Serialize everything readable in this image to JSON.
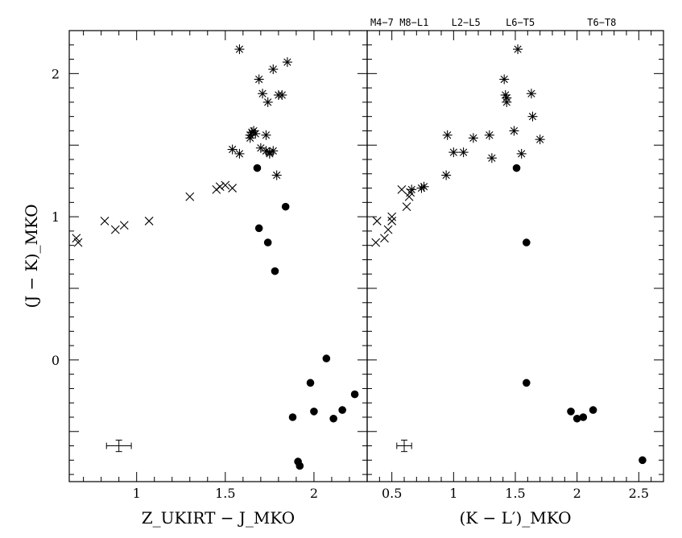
{
  "chart_data": [
    {
      "type": "scatter",
      "xlabel": "Z_UKIRT − J_MKO",
      "ylabel": "(J − K)_MKO",
      "xlim": [
        0.62,
        2.3
      ],
      "ylim": [
        -0.85,
        2.3
      ],
      "x_ticks": [
        "1",
        "1.5",
        "2"
      ],
      "y_ticks": [
        "0",
        "1",
        "2"
      ],
      "grid": false,
      "series": [
        {
          "marker": "cross",
          "x": [
            0.66,
            0.67,
            0.82,
            0.88,
            0.93,
            1.07,
            1.3,
            1.45,
            1.47,
            1.5,
            1.54
          ],
          "y": [
            0.85,
            0.82,
            0.97,
            0.91,
            0.94,
            0.97,
            1.14,
            1.19,
            1.21,
            1.22,
            1.2
          ]
        },
        {
          "marker": "asterisk",
          "x": [
            1.58,
            1.54,
            1.58,
            1.64,
            1.64,
            1.65,
            1.65,
            1.66,
            1.67,
            1.69,
            1.7,
            1.71,
            1.73,
            1.73,
            1.74,
            1.75,
            1.75,
            1.77,
            1.77,
            1.79,
            1.8,
            1.85,
            1.82
          ],
          "y": [
            2.17,
            1.47,
            1.44,
            1.55,
            1.57,
            1.59,
            1.59,
            1.6,
            1.58,
            1.96,
            1.48,
            1.86,
            1.57,
            1.46,
            1.8,
            1.44,
            1.45,
            1.46,
            2.03,
            1.29,
            1.85,
            2.08,
            1.85
          ]
        },
        {
          "marker": "dot",
          "x": [
            1.68,
            1.69,
            1.74,
            1.78,
            1.84,
            1.88,
            1.91,
            1.92,
            1.98,
            2.0,
            2.07,
            2.11,
            2.16,
            2.23
          ],
          "y": [
            1.34,
            0.92,
            0.82,
            0.62,
            1.07,
            -0.4,
            -0.71,
            -0.74,
            -0.16,
            -0.36,
            0.01,
            -0.41,
            -0.35,
            -0.24
          ]
        }
      ],
      "error_bar": {
        "x": 0.9,
        "y": -0.6,
        "dx": 0.07,
        "dy": 0.04
      }
    },
    {
      "type": "scatter",
      "xlabel": "(K − L′)_MKO",
      "ylabel": "",
      "xlim": [
        0.3,
        2.7
      ],
      "ylim": [
        -0.85,
        2.3
      ],
      "x_ticks": [
        "0.5",
        "1",
        "1.5",
        "2",
        "2.5"
      ],
      "grid": false,
      "top_labels": [
        {
          "text": "M4−7",
          "x": 0.42
        },
        {
          "text": "M8−L1",
          "x": 0.68
        },
        {
          "text": "L2−L5",
          "x": 1.1
        },
        {
          "text": "L6−T5",
          "x": 1.54
        },
        {
          "text": "T6−T8",
          "x": 2.2
        }
      ],
      "series": [
        {
          "marker": "cross",
          "x": [
            0.37,
            0.38,
            0.44,
            0.47,
            0.5,
            0.5,
            0.58,
            0.62,
            0.64,
            0.65
          ],
          "y": [
            0.82,
            0.97,
            0.85,
            0.91,
            0.97,
            1.0,
            1.19,
            1.07,
            1.14,
            1.17
          ]
        },
        {
          "marker": "asterisk",
          "x": [
            0.66,
            0.74,
            0.76,
            0.94,
            0.95,
            1.0,
            1.08,
            1.16,
            1.29,
            1.31,
            1.41,
            1.42,
            1.43,
            1.43,
            1.49,
            1.52,
            1.55,
            1.63,
            1.64,
            1.7
          ],
          "y": [
            1.19,
            1.2,
            1.21,
            1.29,
            1.57,
            1.45,
            1.45,
            1.55,
            1.57,
            1.41,
            1.96,
            1.85,
            1.83,
            1.8,
            1.6,
            2.17,
            1.44,
            1.86,
            1.7,
            1.54
          ]
        },
        {
          "marker": "dot",
          "x": [
            1.51,
            1.59,
            1.59,
            1.95,
            2.0,
            2.05,
            2.13,
            2.53
          ],
          "y": [
            1.34,
            0.82,
            -0.16,
            -0.36,
            -0.41,
            -0.4,
            -0.35,
            -0.7
          ]
        }
      ],
      "error_bar": {
        "x": 0.6,
        "y": -0.6,
        "dx": 0.06,
        "dy": 0.04
      }
    }
  ]
}
